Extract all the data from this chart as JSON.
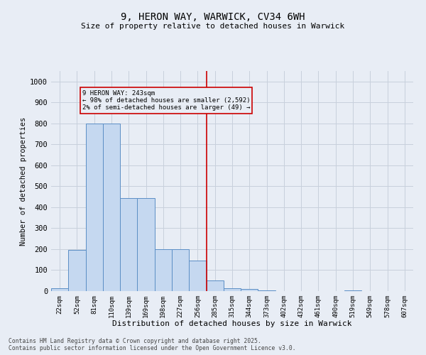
{
  "title1": "9, HERON WAY, WARWICK, CV34 6WH",
  "title2": "Size of property relative to detached houses in Warwick",
  "xlabel": "Distribution of detached houses by size in Warwick",
  "ylabel": "Number of detached properties",
  "categories": [
    "22sqm",
    "52sqm",
    "81sqm",
    "110sqm",
    "139sqm",
    "169sqm",
    "198sqm",
    "227sqm",
    "256sqm",
    "285sqm",
    "315sqm",
    "344sqm",
    "373sqm",
    "402sqm",
    "432sqm",
    "461sqm",
    "490sqm",
    "519sqm",
    "549sqm",
    "578sqm",
    "607sqm"
  ],
  "values": [
    15,
    195,
    800,
    800,
    445,
    445,
    200,
    200,
    145,
    50,
    15,
    10,
    5,
    0,
    0,
    0,
    0,
    5,
    0,
    0,
    0
  ],
  "bar_color": "#c5d8f0",
  "bar_edge_color": "#5b8ec5",
  "vline_x": 8.5,
  "vline_color": "#cc0000",
  "annotation_text": "9 HERON WAY: 243sqm\n← 98% of detached houses are smaller (2,592)\n2% of semi-detached houses are larger (49) →",
  "annotation_box_color": "#cc0000",
  "ylim": [
    0,
    1050
  ],
  "yticks": [
    0,
    100,
    200,
    300,
    400,
    500,
    600,
    700,
    800,
    900,
    1000
  ],
  "grid_color": "#c8d0dc",
  "bg_color": "#e8edf5",
  "footer1": "Contains HM Land Registry data © Crown copyright and database right 2025.",
  "footer2": "Contains public sector information licensed under the Open Government Licence v3.0."
}
